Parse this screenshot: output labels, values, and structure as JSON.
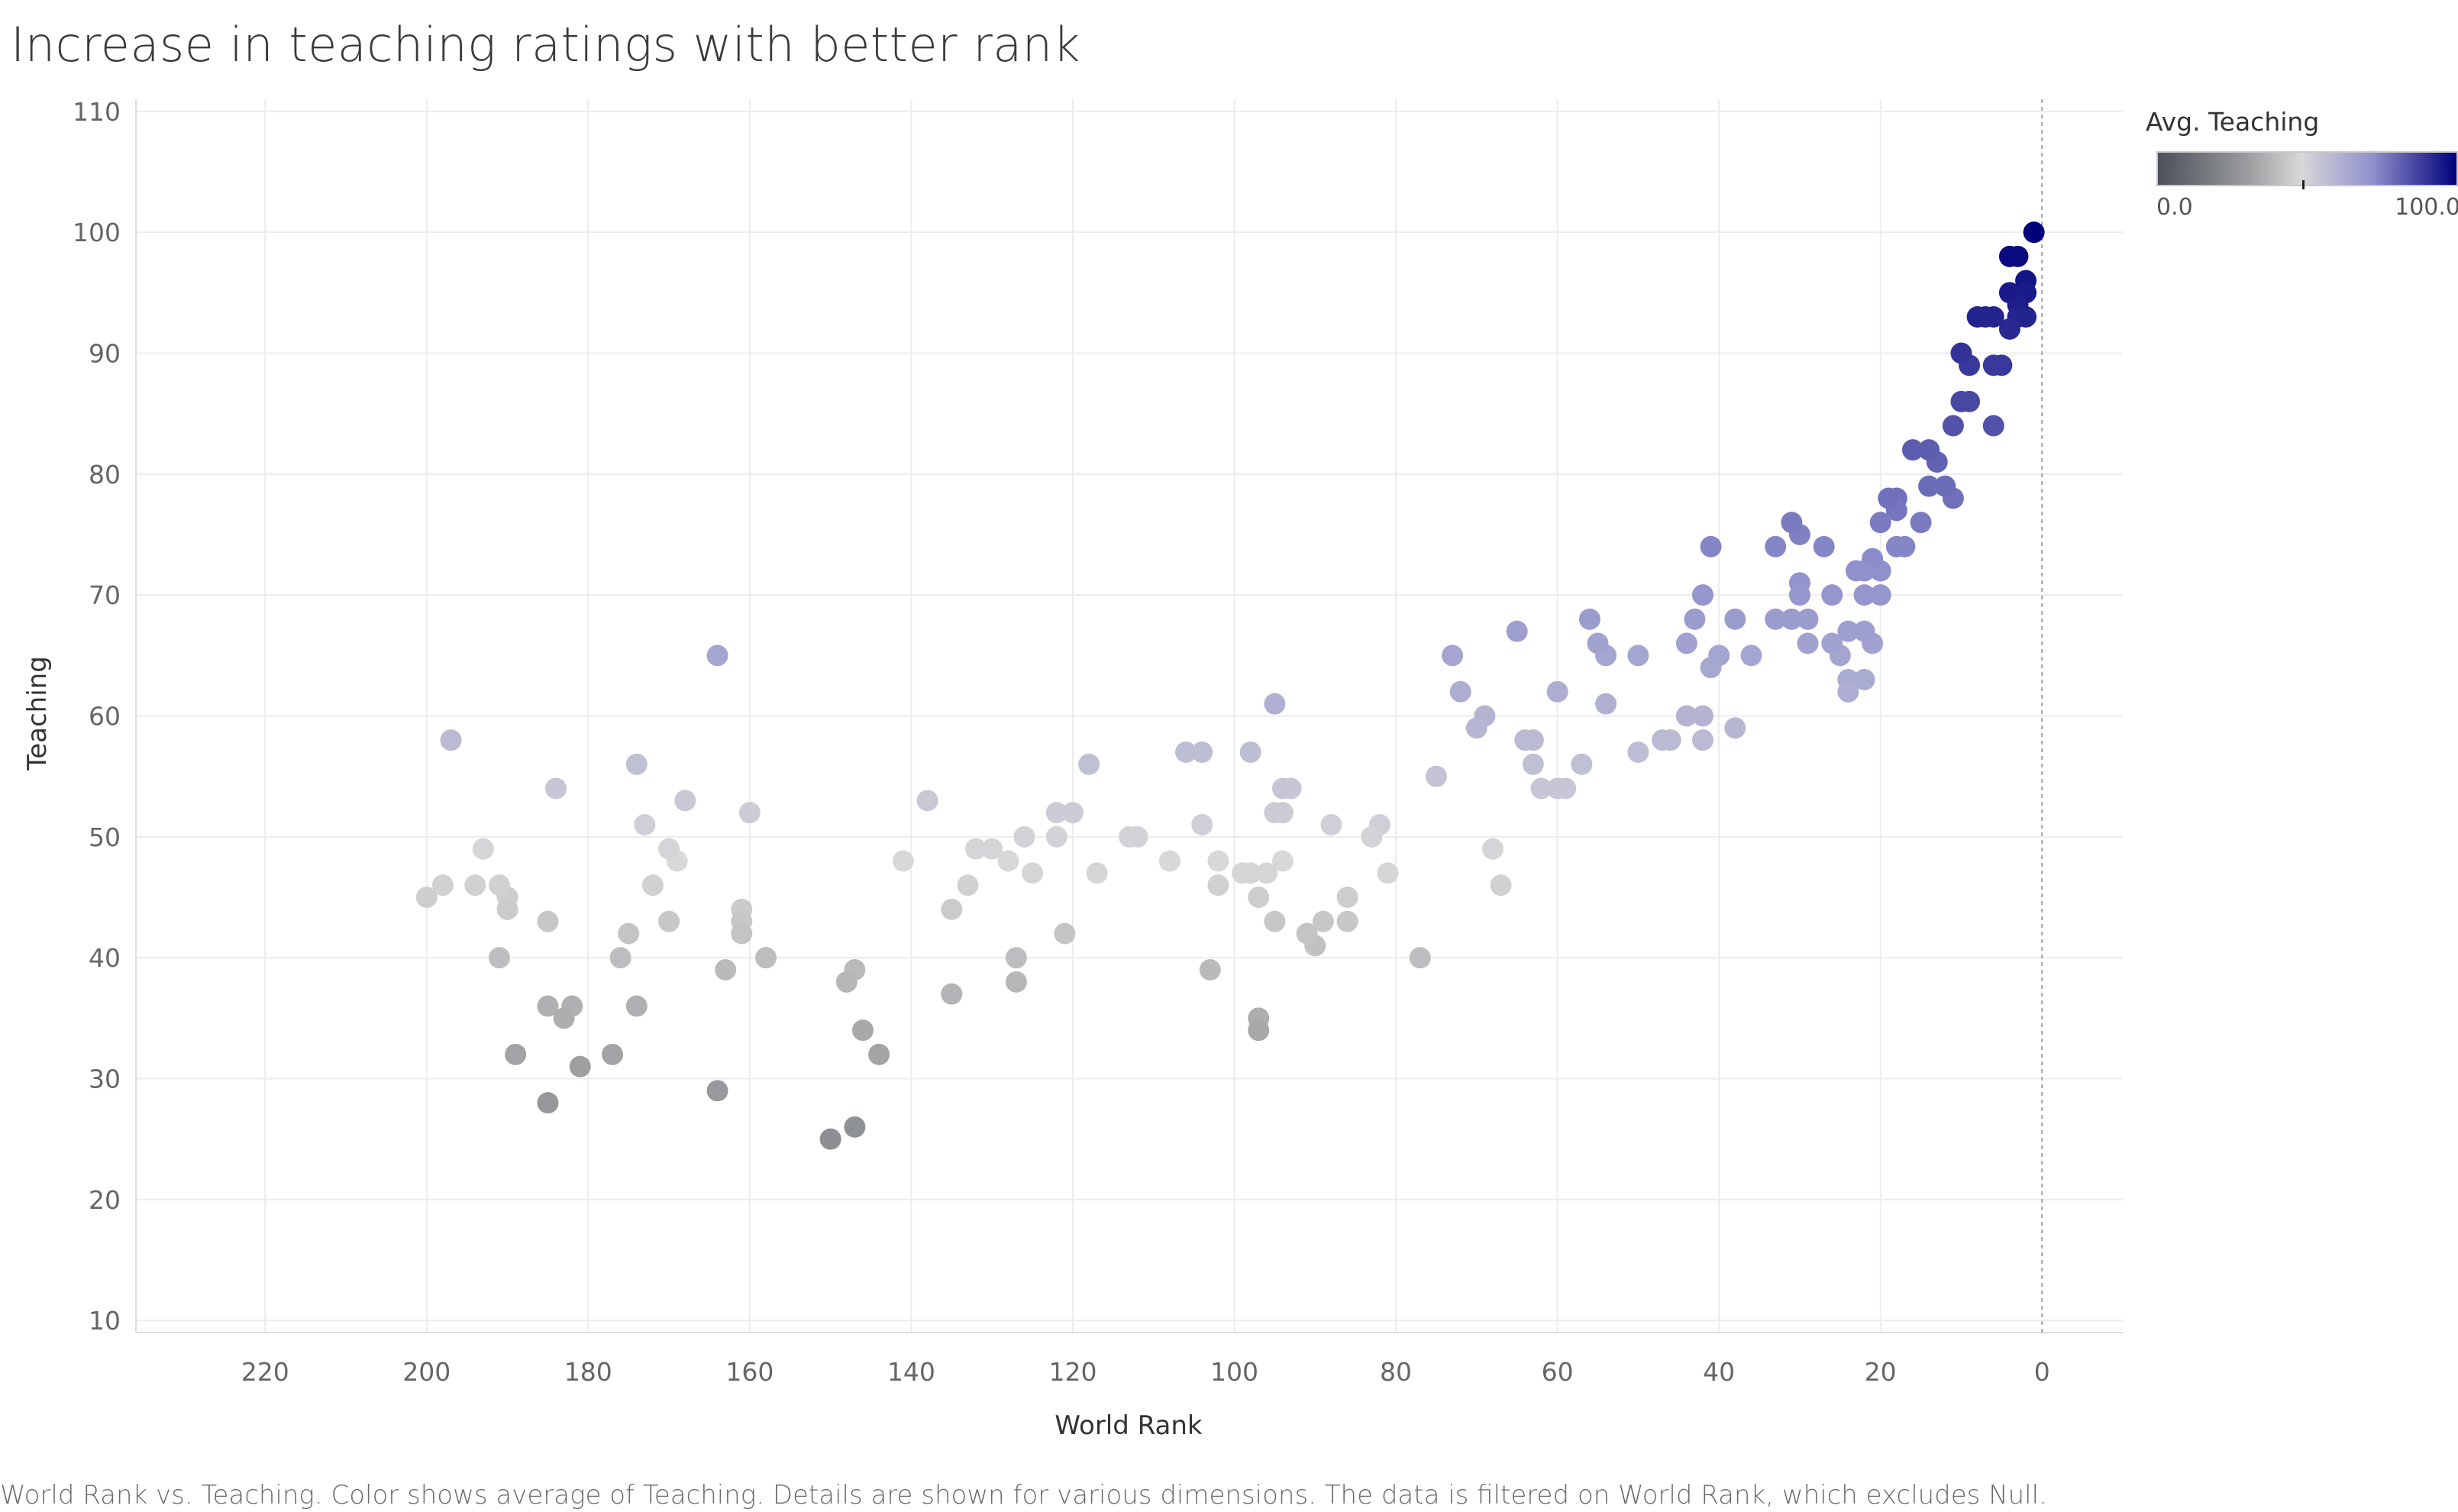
{
  "page": {
    "title": "Increase in teaching ratings with better rank",
    "caption": "World Rank vs. Teaching.  Color shows average of Teaching.  Details are shown for various dimensions. The data is filtered on World Rank, which excludes Null."
  },
  "legend": {
    "title": "Avg. Teaching",
    "min_label": "0.0",
    "max_label": "100.0",
    "colors": [
      "#4b5059",
      "#9a9c9e",
      "#d8d8d8",
      "#8f90cc",
      "#00007a"
    ]
  },
  "chart_data": {
    "type": "scatter",
    "title": "Increase in teaching ratings with better rank",
    "xlabel": "World Rank",
    "ylabel": "Teaching",
    "x_reversed": true,
    "xlim": [
      236,
      -10
    ],
    "ylim": [
      9,
      111
    ],
    "xticks": [
      "220",
      "200",
      "180",
      "160",
      "140",
      "120",
      "100",
      "80",
      "60",
      "40",
      "20",
      "0"
    ],
    "yticks": [
      "10",
      "20",
      "30",
      "40",
      "50",
      "60",
      "70",
      "80",
      "90",
      "100",
      "110"
    ],
    "grid": true,
    "reference_line_x": 0,
    "color_scale": {
      "field": "Avg. Teaching",
      "min": 0,
      "max": 100
    },
    "points": [
      {
        "x": 1,
        "y": 100
      },
      {
        "x": 2,
        "y": 96
      },
      {
        "x": 2,
        "y": 95
      },
      {
        "x": 2,
        "y": 93
      },
      {
        "x": 3,
        "y": 98
      },
      {
        "x": 3,
        "y": 94
      },
      {
        "x": 3,
        "y": 93
      },
      {
        "x": 4,
        "y": 98
      },
      {
        "x": 4,
        "y": 95
      },
      {
        "x": 4,
        "y": 92
      },
      {
        "x": 5,
        "y": 89
      },
      {
        "x": 6,
        "y": 93
      },
      {
        "x": 6,
        "y": 89
      },
      {
        "x": 6,
        "y": 84
      },
      {
        "x": 7,
        "y": 93
      },
      {
        "x": 8,
        "y": 93
      },
      {
        "x": 9,
        "y": 89
      },
      {
        "x": 9,
        "y": 86
      },
      {
        "x": 10,
        "y": 90
      },
      {
        "x": 10,
        "y": 86
      },
      {
        "x": 11,
        "y": 84
      },
      {
        "x": 11,
        "y": 78
      },
      {
        "x": 12,
        "y": 79
      },
      {
        "x": 13,
        "y": 81
      },
      {
        "x": 14,
        "y": 82
      },
      {
        "x": 14,
        "y": 79
      },
      {
        "x": 15,
        "y": 76
      },
      {
        "x": 16,
        "y": 82
      },
      {
        "x": 17,
        "y": 74
      },
      {
        "x": 18,
        "y": 78
      },
      {
        "x": 18,
        "y": 77
      },
      {
        "x": 18,
        "y": 74
      },
      {
        "x": 19,
        "y": 78
      },
      {
        "x": 20,
        "y": 76
      },
      {
        "x": 20,
        "y": 72
      },
      {
        "x": 20,
        "y": 70
      },
      {
        "x": 21,
        "y": 73
      },
      {
        "x": 21,
        "y": 66
      },
      {
        "x": 22,
        "y": 72
      },
      {
        "x": 22,
        "y": 70
      },
      {
        "x": 22,
        "y": 67
      },
      {
        "x": 22,
        "y": 63
      },
      {
        "x": 23,
        "y": 72
      },
      {
        "x": 24,
        "y": 67
      },
      {
        "x": 24,
        "y": 63
      },
      {
        "x": 24,
        "y": 62
      },
      {
        "x": 25,
        "y": 65
      },
      {
        "x": 26,
        "y": 70
      },
      {
        "x": 26,
        "y": 66
      },
      {
        "x": 27,
        "y": 74
      },
      {
        "x": 29,
        "y": 68
      },
      {
        "x": 29,
        "y": 66
      },
      {
        "x": 30,
        "y": 75
      },
      {
        "x": 30,
        "y": 71
      },
      {
        "x": 30,
        "y": 70
      },
      {
        "x": 31,
        "y": 76
      },
      {
        "x": 31,
        "y": 68
      },
      {
        "x": 33,
        "y": 74
      },
      {
        "x": 33,
        "y": 68
      },
      {
        "x": 36,
        "y": 65
      },
      {
        "x": 38,
        "y": 68
      },
      {
        "x": 38,
        "y": 59
      },
      {
        "x": 40,
        "y": 65
      },
      {
        "x": 41,
        "y": 74
      },
      {
        "x": 41,
        "y": 64
      },
      {
        "x": 42,
        "y": 70
      },
      {
        "x": 42,
        "y": 60
      },
      {
        "x": 42,
        "y": 58
      },
      {
        "x": 43,
        "y": 68
      },
      {
        "x": 44,
        "y": 66
      },
      {
        "x": 44,
        "y": 60
      },
      {
        "x": 46,
        "y": 58
      },
      {
        "x": 47,
        "y": 58
      },
      {
        "x": 50,
        "y": 65
      },
      {
        "x": 50,
        "y": 57
      },
      {
        "x": 54,
        "y": 65
      },
      {
        "x": 54,
        "y": 61
      },
      {
        "x": 55,
        "y": 66
      },
      {
        "x": 56,
        "y": 68
      },
      {
        "x": 57,
        "y": 56
      },
      {
        "x": 59,
        "y": 54
      },
      {
        "x": 60,
        "y": 62
      },
      {
        "x": 60,
        "y": 54
      },
      {
        "x": 62,
        "y": 54
      },
      {
        "x": 63,
        "y": 58
      },
      {
        "x": 63,
        "y": 56
      },
      {
        "x": 64,
        "y": 58
      },
      {
        "x": 65,
        "y": 67
      },
      {
        "x": 67,
        "y": 46
      },
      {
        "x": 68,
        "y": 49
      },
      {
        "x": 69,
        "y": 60
      },
      {
        "x": 70,
        "y": 59
      },
      {
        "x": 72,
        "y": 62
      },
      {
        "x": 73,
        "y": 65
      },
      {
        "x": 75,
        "y": 55
      },
      {
        "x": 77,
        "y": 40
      },
      {
        "x": 81,
        "y": 47
      },
      {
        "x": 82,
        "y": 51
      },
      {
        "x": 83,
        "y": 50
      },
      {
        "x": 86,
        "y": 45
      },
      {
        "x": 86,
        "y": 43
      },
      {
        "x": 88,
        "y": 51
      },
      {
        "x": 89,
        "y": 43
      },
      {
        "x": 90,
        "y": 41
      },
      {
        "x": 91,
        "y": 42
      },
      {
        "x": 93,
        "y": 54
      },
      {
        "x": 94,
        "y": 54
      },
      {
        "x": 94,
        "y": 52
      },
      {
        "x": 94,
        "y": 48
      },
      {
        "x": 95,
        "y": 61
      },
      {
        "x": 95,
        "y": 52
      },
      {
        "x": 95,
        "y": 43
      },
      {
        "x": 96,
        "y": 47
      },
      {
        "x": 97,
        "y": 45
      },
      {
        "x": 97,
        "y": 35
      },
      {
        "x": 97,
        "y": 34
      },
      {
        "x": 98,
        "y": 57
      },
      {
        "x": 98,
        "y": 47
      },
      {
        "x": 99,
        "y": 47
      },
      {
        "x": 102,
        "y": 48
      },
      {
        "x": 102,
        "y": 46
      },
      {
        "x": 103,
        "y": 39
      },
      {
        "x": 104,
        "y": 57
      },
      {
        "x": 104,
        "y": 51
      },
      {
        "x": 106,
        "y": 57
      },
      {
        "x": 108,
        "y": 48
      },
      {
        "x": 112,
        "y": 50
      },
      {
        "x": 113,
        "y": 50
      },
      {
        "x": 117,
        "y": 47
      },
      {
        "x": 118,
        "y": 56
      },
      {
        "x": 120,
        "y": 52
      },
      {
        "x": 121,
        "y": 42
      },
      {
        "x": 122,
        "y": 52
      },
      {
        "x": 122,
        "y": 50
      },
      {
        "x": 125,
        "y": 47
      },
      {
        "x": 126,
        "y": 50
      },
      {
        "x": 127,
        "y": 40
      },
      {
        "x": 127,
        "y": 38
      },
      {
        "x": 128,
        "y": 48
      },
      {
        "x": 130,
        "y": 49
      },
      {
        "x": 132,
        "y": 49
      },
      {
        "x": 133,
        "y": 46
      },
      {
        "x": 135,
        "y": 44
      },
      {
        "x": 135,
        "y": 37
      },
      {
        "x": 138,
        "y": 53
      },
      {
        "x": 141,
        "y": 48
      },
      {
        "x": 144,
        "y": 32
      },
      {
        "x": 146,
        "y": 34
      },
      {
        "x": 147,
        "y": 39
      },
      {
        "x": 147,
        "y": 26
      },
      {
        "x": 148,
        "y": 38
      },
      {
        "x": 150,
        "y": 25
      },
      {
        "x": 158,
        "y": 40
      },
      {
        "x": 160,
        "y": 52
      },
      {
        "x": 161,
        "y": 44
      },
      {
        "x": 161,
        "y": 43
      },
      {
        "x": 161,
        "y": 42
      },
      {
        "x": 163,
        "y": 39
      },
      {
        "x": 164,
        "y": 65
      },
      {
        "x": 164,
        "y": 29
      },
      {
        "x": 168,
        "y": 53
      },
      {
        "x": 169,
        "y": 48
      },
      {
        "x": 170,
        "y": 49
      },
      {
        "x": 170,
        "y": 43
      },
      {
        "x": 172,
        "y": 46
      },
      {
        "x": 173,
        "y": 51
      },
      {
        "x": 174,
        "y": 56
      },
      {
        "x": 174,
        "y": 36
      },
      {
        "x": 175,
        "y": 42
      },
      {
        "x": 176,
        "y": 40
      },
      {
        "x": 177,
        "y": 32
      },
      {
        "x": 181,
        "y": 31
      },
      {
        "x": 182,
        "y": 36
      },
      {
        "x": 183,
        "y": 35
      },
      {
        "x": 184,
        "y": 54
      },
      {
        "x": 185,
        "y": 43
      },
      {
        "x": 185,
        "y": 36
      },
      {
        "x": 185,
        "y": 28
      },
      {
        "x": 189,
        "y": 32
      },
      {
        "x": 190,
        "y": 45
      },
      {
        "x": 190,
        "y": 44
      },
      {
        "x": 191,
        "y": 46
      },
      {
        "x": 191,
        "y": 40
      },
      {
        "x": 193,
        "y": 49
      },
      {
        "x": 194,
        "y": 46
      },
      {
        "x": 197,
        "y": 58
      },
      {
        "x": 198,
        "y": 46
      },
      {
        "x": 200,
        "y": 45
      }
    ]
  }
}
